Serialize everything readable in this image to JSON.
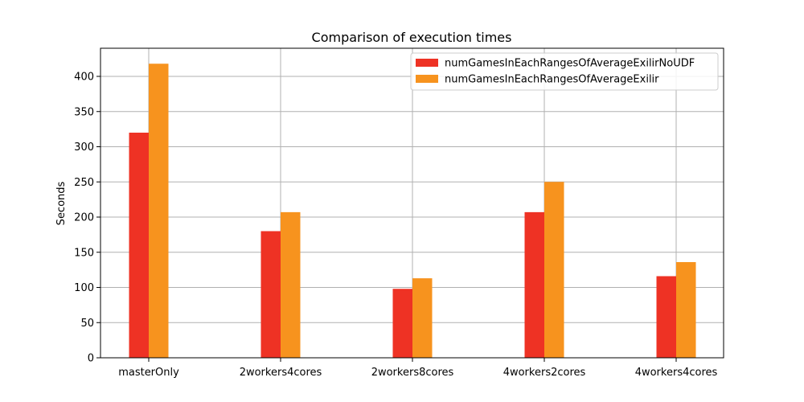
{
  "chart_data": {
    "type": "bar",
    "title": "Comparison of execution times",
    "xlabel": "",
    "ylabel": "Seconds",
    "categories": [
      "masterOnly",
      "2workers4cores",
      "2workers8cores",
      "4workers2cores",
      "4workers4cores"
    ],
    "series": [
      {
        "name": "numGamesInEachRangesOfAverageExilirNoUDF",
        "values": [
          320,
          180,
          98,
          207,
          116
        ],
        "color": "#ee3224"
      },
      {
        "name": "numGamesInEachRangesOfAverageExilir",
        "values": [
          418,
          207,
          113,
          250,
          136
        ],
        "color": "#f7931e"
      }
    ],
    "ylim": [
      0,
      440
    ],
    "yticks": [
      0,
      50,
      100,
      150,
      200,
      250,
      300,
      350,
      400
    ],
    "grid": true,
    "legend_position": "top-right"
  }
}
